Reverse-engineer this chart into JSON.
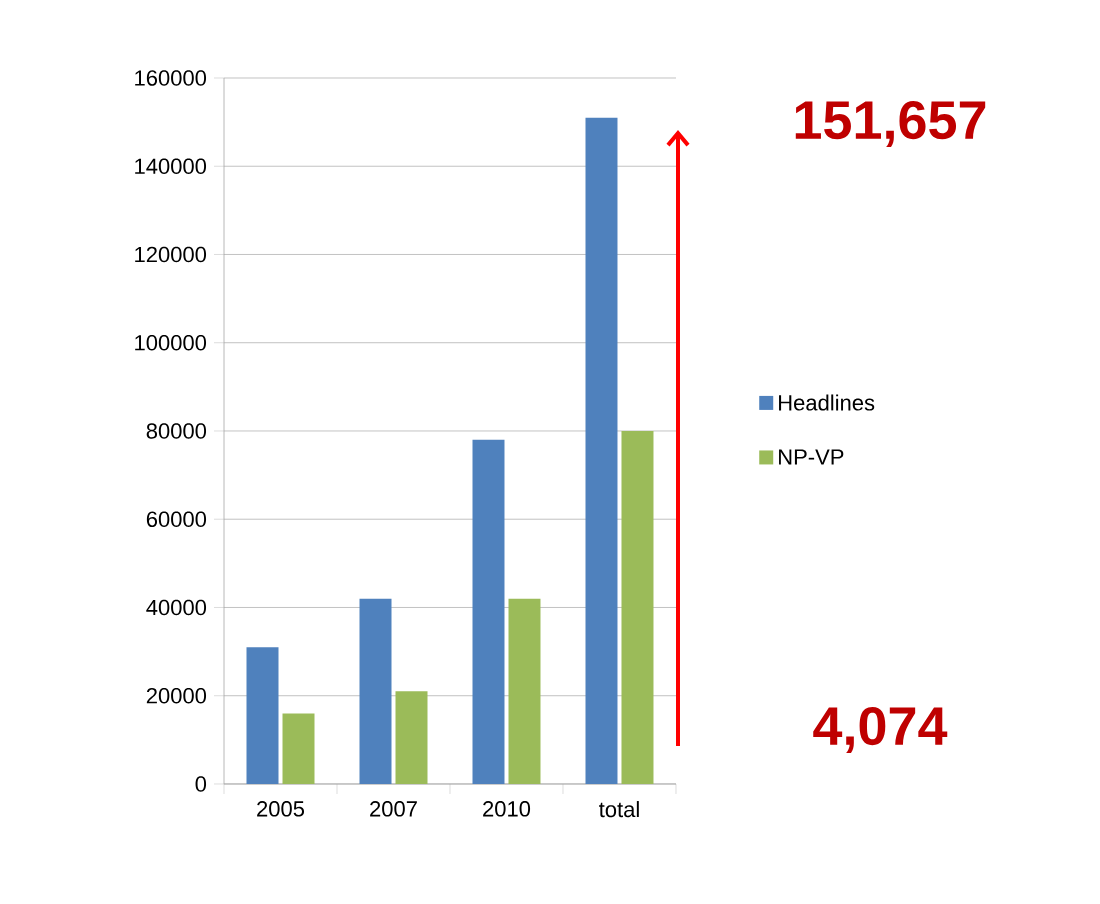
{
  "chart_data": {
    "type": "bar",
    "categories": [
      "2005",
      "2007",
      "2010",
      "total"
    ],
    "series": [
      {
        "name": "Headlines",
        "color": "#4f81bd",
        "values": [
          31000,
          42000,
          78000,
          151000
        ]
      },
      {
        "name": "NP-VP",
        "color": "#9bbb59",
        "values": [
          16000,
          21000,
          42000,
          80000
        ]
      }
    ],
    "ylim": [
      0,
      160000
    ],
    "yticks": [
      0,
      20000,
      40000,
      60000,
      80000,
      100000,
      120000,
      140000,
      160000
    ],
    "grid": "y",
    "legend": "right",
    "annotations": [
      "151,657",
      "4,074"
    ]
  }
}
